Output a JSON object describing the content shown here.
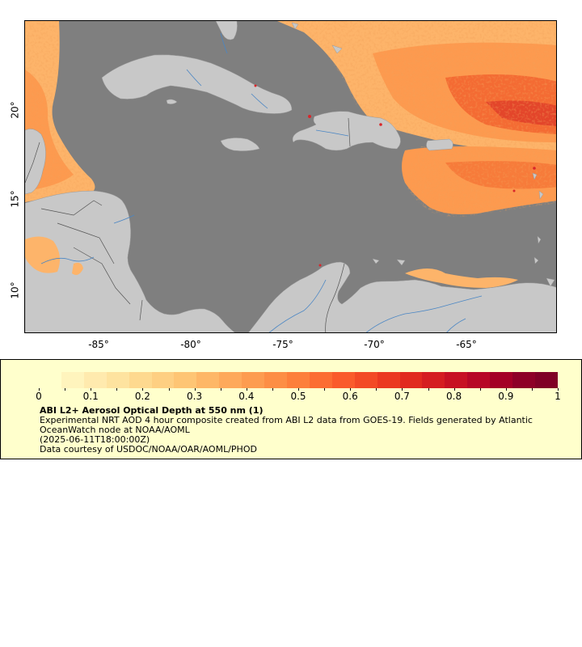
{
  "map": {
    "lon_labels": [
      "-85°",
      "-80°",
      "-75°",
      "-70°",
      "-65°"
    ],
    "lat_labels": [
      "20°",
      "15°",
      "10°"
    ],
    "ocean_color": "#7f7f7f",
    "land_color": "#c8c8c8",
    "river_color": "#4a86c4",
    "border_color": "#555555"
  },
  "legend": {
    "tick_labels": [
      "0",
      "0.1",
      "0.2",
      "0.3",
      "0.4",
      "0.5",
      "0.6",
      "0.7",
      "0.8",
      "0.9",
      "1"
    ],
    "title": "ABI L2+ Aerosol Optical Depth at 550 nm (1)",
    "description": "Experimental NRT AOD 4 hour composite created from ABI L2 data from GOES-19. Fields generated by Atlantic OceanWatch node at NOAA/AOML",
    "timestamp": "(2025-06-11T18:00:00Z)",
    "credit": "Data courtesy of USDOC/NOAA/OAR/AOML/PHOD",
    "colors": [
      "#ffffcc",
      "#fff4bd",
      "#ffeaae",
      "#fee39f",
      "#fed98f",
      "#fecf82",
      "#fec574",
      "#feb767",
      "#fea95b",
      "#fd9c50",
      "#fd8e45",
      "#fd7f3b",
      "#fc6d33",
      "#fa5b2c",
      "#f34a26",
      "#eb3922",
      "#e12a20",
      "#d51d21",
      "#c71123",
      "#b70726",
      "#a40026",
      "#8e0027",
      "#800026"
    ]
  }
}
